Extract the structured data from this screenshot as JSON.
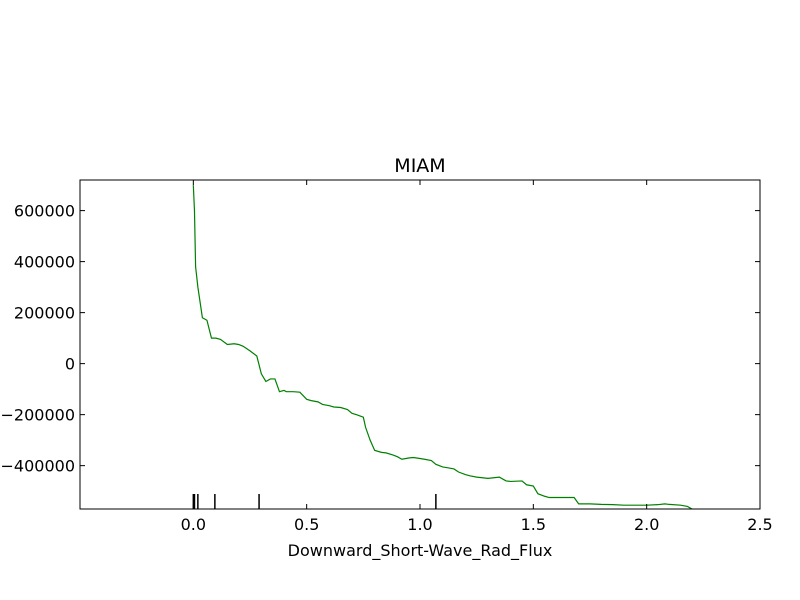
{
  "chart_data": {
    "type": "line",
    "title": "MIAM",
    "xlabel": "Downward_Short-Wave_Rad_Flux",
    "ylabel": "",
    "xlim": [
      -0.5,
      2.5
    ],
    "ylim": [
      -570000,
      720000
    ],
    "grid": false,
    "x_ticks": [
      0.0,
      0.5,
      1.0,
      1.5,
      2.0,
      2.5
    ],
    "x_tick_labels": [
      "0.0",
      "0.5",
      "1.0",
      "1.5",
      "2.0",
      "2.5"
    ],
    "y_ticks": [
      600000,
      400000,
      200000,
      0,
      -200000,
      -400000
    ],
    "y_tick_labels": [
      "600000",
      "400000",
      "200000",
      "0",
      "−200000",
      "−400000"
    ],
    "rug": [
      0.0,
      0.005,
      0.02,
      0.095,
      0.29,
      1.07
    ],
    "series": [
      {
        "color": "#008000",
        "x": [
          0.0,
          0.005,
          0.01,
          0.02,
          0.04,
          0.06,
          0.08,
          0.1,
          0.12,
          0.15,
          0.18,
          0.2,
          0.22,
          0.25,
          0.28,
          0.3,
          0.32,
          0.34,
          0.36,
          0.38,
          0.4,
          0.41,
          0.42,
          0.44,
          0.47,
          0.5,
          0.52,
          0.55,
          0.57,
          0.6,
          0.62,
          0.65,
          0.68,
          0.7,
          0.72,
          0.75,
          0.76,
          0.78,
          0.8,
          0.83,
          0.85,
          0.88,
          0.9,
          0.92,
          0.95,
          0.97,
          1.0,
          1.02,
          1.05,
          1.07,
          1.1,
          1.12,
          1.15,
          1.17,
          1.2,
          1.22,
          1.25,
          1.3,
          1.35,
          1.37,
          1.38,
          1.4,
          1.45,
          1.47,
          1.5,
          1.52,
          1.55,
          1.57,
          1.6,
          1.65,
          1.68,
          1.7,
          1.75,
          1.8,
          1.85,
          1.9,
          2.0,
          2.05,
          2.08,
          2.1,
          2.15,
          2.18,
          2.2
        ],
        "y": [
          700000,
          600000,
          380000,
          300000,
          180000,
          170000,
          100000,
          100000,
          95000,
          75000,
          78000,
          75000,
          68000,
          50000,
          30000,
          -40000,
          -70000,
          -60000,
          -60000,
          -110000,
          -105000,
          -110000,
          -110000,
          -110000,
          -112000,
          -140000,
          -145000,
          -150000,
          -160000,
          -165000,
          -170000,
          -172000,
          -180000,
          -195000,
          -200000,
          -210000,
          -250000,
          -300000,
          -340000,
          -348000,
          -350000,
          -358000,
          -365000,
          -375000,
          -370000,
          -368000,
          -372000,
          -375000,
          -380000,
          -395000,
          -405000,
          -408000,
          -413000,
          -425000,
          -435000,
          -440000,
          -445000,
          -450000,
          -445000,
          -455000,
          -460000,
          -462000,
          -460000,
          -475000,
          -480000,
          -510000,
          -520000,
          -525000,
          -525000,
          -525000,
          -525000,
          -550000,
          -550000,
          -552000,
          -553000,
          -555000,
          -555000,
          -553000,
          -550000,
          -552000,
          -555000,
          -560000,
          -570000
        ]
      }
    ]
  }
}
